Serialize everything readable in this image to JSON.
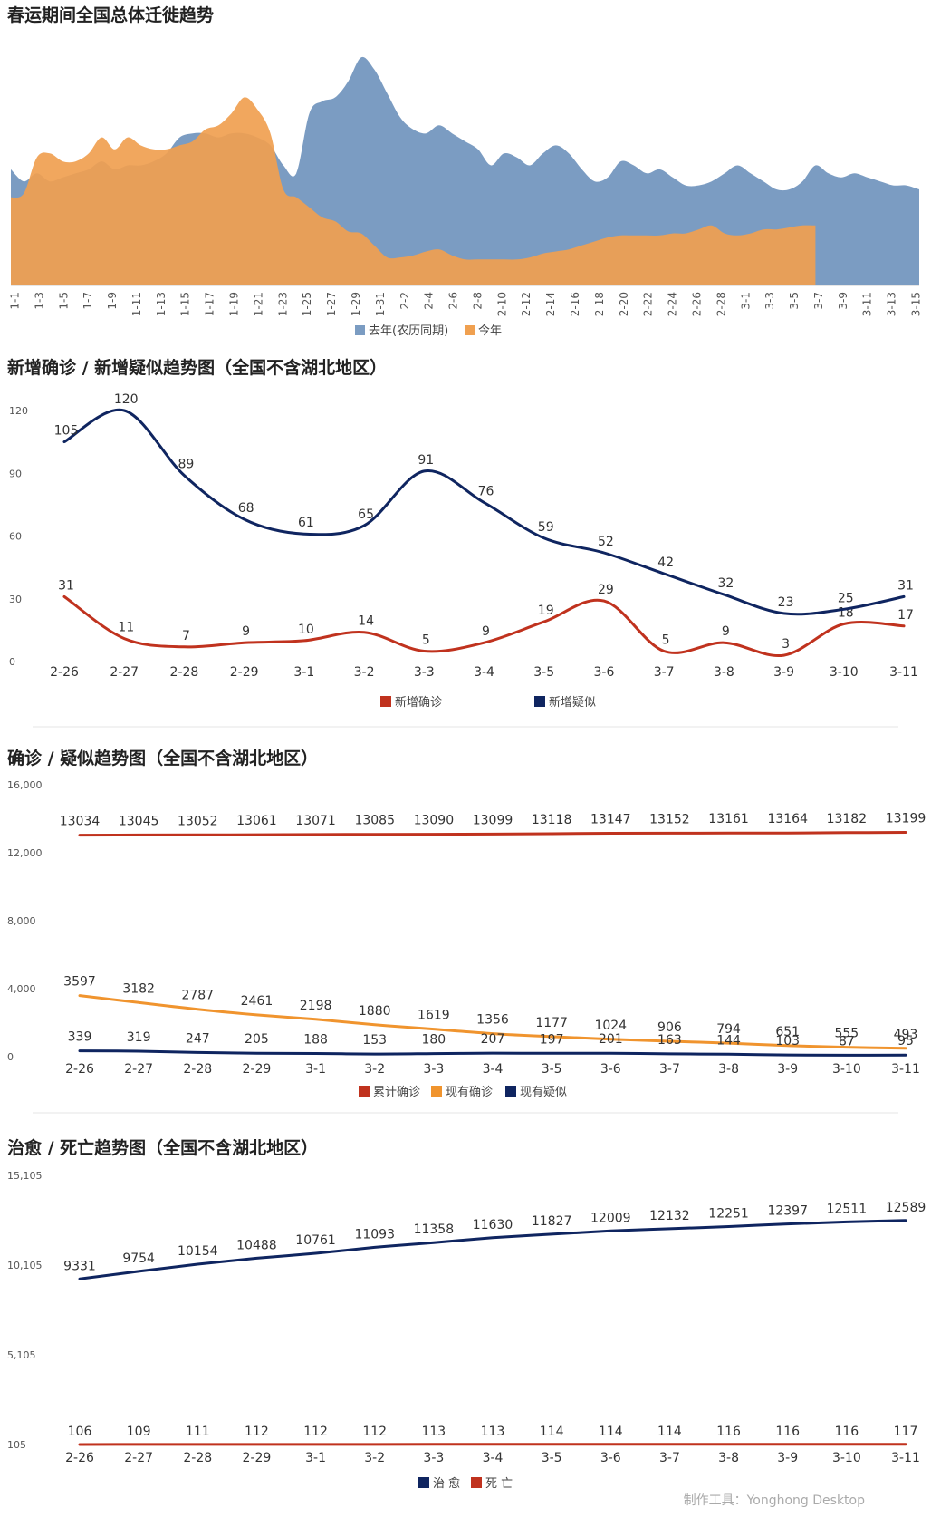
{
  "footer": {
    "credit": "制作工具：Yonghong Desktop"
  },
  "chart_data": [
    {
      "type": "area",
      "title": "春运期间全国总体迁徙趋势",
      "x_tick_labels": [
        "1-1",
        "1-3",
        "1-5",
        "1-7",
        "1-9",
        "1-11",
        "1-13",
        "1-15",
        "1-17",
        "1-19",
        "1-21",
        "1-23",
        "1-25",
        "1-27",
        "1-29",
        "1-31",
        "2-2",
        "2-4",
        "2-6",
        "2-8",
        "2-10",
        "2-12",
        "2-14",
        "2-16",
        "2-18",
        "2-20",
        "2-22",
        "2-24",
        "2-26",
        "2-28",
        "3-1",
        "3-3",
        "3-5",
        "3-7",
        "3-9",
        "3-11",
        "3-13",
        "3-15"
      ],
      "legend": [
        "去年(农历同期)",
        "今年"
      ],
      "legend_position": "bottom",
      "grid": false,
      "y_axis_shown": false,
      "series": [
        {
          "name": "去年(农历同期)",
          "color": "#7B9CC2",
          "values": [
            5.8,
            5.2,
            5.6,
            5.2,
            5.4,
            5.6,
            5.8,
            6.2,
            5.8,
            6.0,
            6.0,
            6.2,
            6.6,
            7.4,
            7.6,
            7.6,
            7.4,
            7.6,
            7.6,
            7.4,
            7.0,
            6.0,
            5.6,
            8.6,
            9.2,
            9.4,
            10.2,
            11.4,
            10.8,
            9.6,
            8.4,
            7.8,
            7.6,
            8.0,
            7.6,
            7.2,
            6.8,
            6.0,
            6.6,
            6.4,
            6.0,
            6.6,
            7.0,
            6.6,
            5.8,
            5.2,
            5.4,
            6.2,
            6.0,
            5.6,
            5.8,
            5.4,
            5.0,
            5.0,
            5.2,
            5.6,
            6.0,
            5.6,
            5.2,
            4.8,
            4.8,
            5.2,
            6.0,
            5.6,
            5.4,
            5.6,
            5.4,
            5.2,
            5.0,
            5.0,
            4.8
          ]
        },
        {
          "name": "今年",
          "color": "#F0A050",
          "values": [
            4.4,
            4.6,
            6.4,
            6.6,
            6.2,
            6.2,
            6.6,
            7.4,
            6.8,
            7.4,
            7.0,
            6.8,
            6.8,
            7.0,
            7.2,
            7.8,
            8.0,
            8.6,
            9.4,
            8.8,
            7.6,
            4.8,
            4.4,
            3.9,
            3.4,
            3.2,
            2.7,
            2.6,
            2.0,
            1.4,
            1.4,
            1.5,
            1.7,
            1.8,
            1.5,
            1.3,
            1.3,
            1.3,
            1.3,
            1.3,
            1.4,
            1.6,
            1.7,
            1.8,
            2.0,
            2.2,
            2.4,
            2.5,
            2.5,
            2.5,
            2.5,
            2.6,
            2.6,
            2.8,
            3.0,
            2.6,
            2.5,
            2.6,
            2.8,
            2.8,
            2.9,
            3.0,
            3.0
          ]
        }
      ]
    },
    {
      "type": "line",
      "title": "新增确诊 / 新增疑似趋势图（全国不含湖北地区）",
      "categories": [
        "2-26",
        "2-27",
        "2-28",
        "2-29",
        "3-1",
        "3-2",
        "3-3",
        "3-4",
        "3-5",
        "3-6",
        "3-7",
        "3-8",
        "3-9",
        "3-10",
        "3-11"
      ],
      "y_ticks": [
        0,
        30,
        60,
        90,
        120
      ],
      "ylim": [
        0,
        120
      ],
      "grid": false,
      "legend_position": "bottom",
      "series": [
        {
          "name": "新增确诊",
          "color": "#C0321E",
          "values": [
            31,
            11,
            7,
            9,
            10,
            14,
            5,
            9,
            19,
            29,
            5,
            9,
            3,
            18,
            17
          ]
        },
        {
          "name": "新增疑似",
          "color": "#0F2560",
          "values": [
            105,
            120,
            89,
            68,
            61,
            65,
            91,
            76,
            59,
            52,
            42,
            32,
            23,
            25,
            31
          ]
        }
      ]
    },
    {
      "type": "line",
      "title": "确诊 / 疑似趋势图（全国不含湖北地区）",
      "categories": [
        "2-26",
        "2-27",
        "2-28",
        "2-29",
        "3-1",
        "3-2",
        "3-3",
        "3-4",
        "3-5",
        "3-6",
        "3-7",
        "3-8",
        "3-9",
        "3-10",
        "3-11"
      ],
      "y_ticks": [
        "0",
        "4,000",
        "8,000",
        "12,000",
        "16,000"
      ],
      "ylim": [
        0,
        16000
      ],
      "grid": false,
      "legend_position": "bottom",
      "series": [
        {
          "name": "累计确诊",
          "color": "#C0321E",
          "values": [
            13034,
            13045,
            13052,
            13061,
            13071,
            13085,
            13090,
            13099,
            13118,
            13147,
            13152,
            13161,
            13164,
            13182,
            13199
          ]
        },
        {
          "name": "现有确诊",
          "color": "#F0942E",
          "values": [
            3597,
            3182,
            2787,
            2461,
            2198,
            1880,
            1619,
            1356,
            1177,
            1024,
            906,
            794,
            651,
            555,
            493
          ]
        },
        {
          "name": "现有疑似",
          "color": "#0F2560",
          "values": [
            339,
            319,
            247,
            205,
            188,
            153,
            180,
            207,
            197,
            201,
            163,
            144,
            103,
            87,
            95
          ]
        }
      ]
    },
    {
      "type": "line",
      "title": "治愈 / 死亡趋势图（全国不含湖北地区）",
      "categories": [
        "2-26",
        "2-27",
        "2-28",
        "2-29",
        "3-1",
        "3-2",
        "3-3",
        "3-4",
        "3-5",
        "3-6",
        "3-7",
        "3-8",
        "3-9",
        "3-10",
        "3-11"
      ],
      "y_ticks": [
        "105",
        "5,105",
        "10,105",
        "15,105"
      ],
      "ylim": [
        105,
        15105
      ],
      "grid": false,
      "legend_position": "bottom",
      "series": [
        {
          "name": "治 愈",
          "color": "#0F2560",
          "values": [
            9331,
            9754,
            10154,
            10488,
            10761,
            11093,
            11358,
            11630,
            11827,
            12009,
            12132,
            12251,
            12397,
            12511,
            12589
          ]
        },
        {
          "name": "死 亡",
          "color": "#C0321E",
          "values": [
            106,
            109,
            111,
            112,
            112,
            112,
            113,
            113,
            114,
            114,
            114,
            116,
            116,
            116,
            117
          ]
        }
      ]
    }
  ]
}
